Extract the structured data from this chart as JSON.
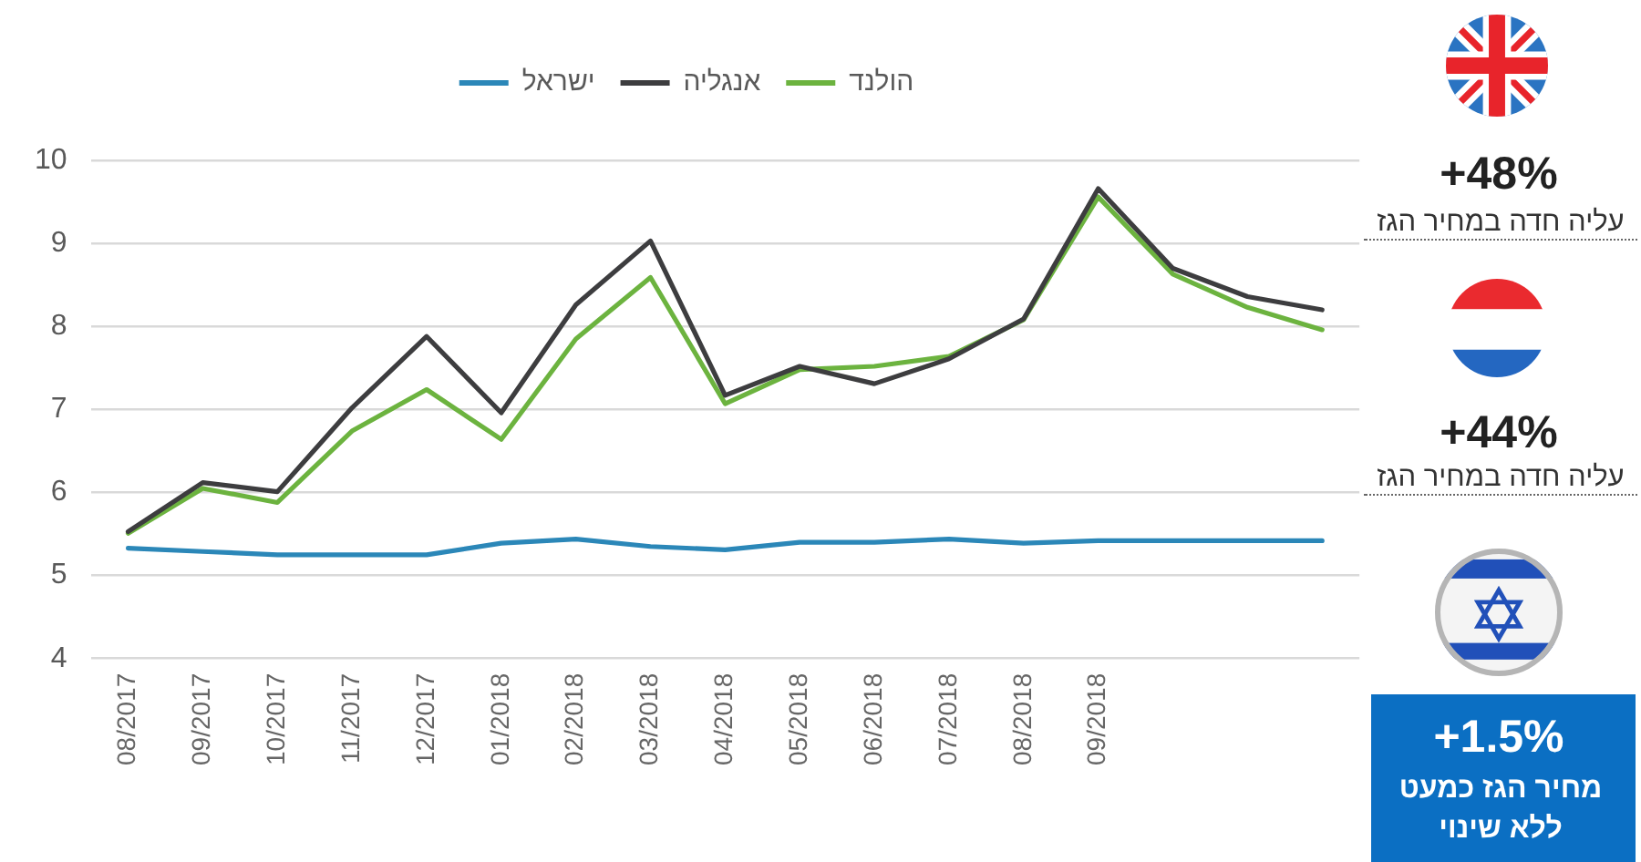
{
  "chart_data": {
    "type": "line",
    "categories": [
      "08/2017",
      "09/2017",
      "10/2017",
      "11/2017",
      "12/2017",
      "01/2018",
      "02/2018",
      "03/2018",
      "04/2018",
      "05/2018",
      "06/2018",
      "07/2018",
      "08/2018",
      "09/2018",
      null,
      null,
      null
    ],
    "series": [
      {
        "name": "ישראל",
        "color": "#2b87b8",
        "values": [
          5.33,
          5.29,
          5.25,
          5.25,
          5.25,
          5.39,
          5.44,
          5.35,
          5.31,
          5.4,
          5.4,
          5.44,
          5.39,
          5.42,
          5.42,
          5.42,
          5.42
        ]
      },
      {
        "name": "אנגליה",
        "color": "#3d3d3f",
        "values": [
          5.53,
          6.12,
          6.01,
          7.02,
          7.88,
          6.96,
          8.26,
          9.03,
          7.17,
          7.52,
          7.31,
          7.61,
          8.09,
          9.66,
          8.7,
          8.36,
          8.2
        ]
      },
      {
        "name": "הולנד",
        "color": "#6cb33f",
        "values": [
          5.51,
          6.05,
          5.88,
          6.74,
          7.24,
          6.64,
          7.85,
          8.59,
          7.07,
          7.48,
          7.52,
          7.64,
          8.08,
          9.56,
          8.63,
          8.23,
          7.96
        ]
      }
    ],
    "ylim": [
      4,
      10
    ],
    "yticks": [
      4,
      5,
      6,
      7,
      8,
      9,
      10
    ],
    "grid": "y",
    "legend": "top",
    "marker": "none",
    "line_style": "solid",
    "annotations": [
      "+48%",
      "עליה חדה במחיר הגז",
      "+44%",
      "עליה חדה במחיר הגז",
      "+1.5%",
      "מחיר הגז כמעט ללא שינוי"
    ]
  }
}
